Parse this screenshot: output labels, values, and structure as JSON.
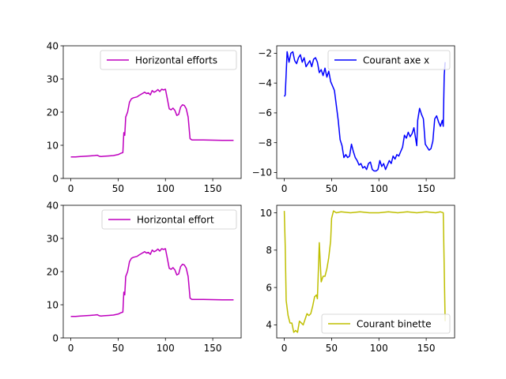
{
  "chart_data": [
    {
      "type": "line",
      "position": "top-left",
      "title": "",
      "xlabel": "",
      "ylabel": "",
      "xlim": [
        -8,
        180
      ],
      "ylim": [
        0,
        40
      ],
      "xticks": [
        0,
        50,
        100,
        150
      ],
      "yticks": [
        0,
        10,
        20,
        30,
        40
      ],
      "grid": false,
      "legend_loc": "upper right",
      "series": [
        {
          "name": "Horizontal efforts",
          "color": "#bf00bf",
          "points": [
            [
              0,
              6.5
            ],
            [
              5,
              6.5
            ],
            [
              10,
              6.6
            ],
            [
              15,
              6.7
            ],
            [
              20,
              6.8
            ],
            [
              25,
              6.9
            ],
            [
              28,
              7.0
            ],
            [
              30,
              6.7
            ],
            [
              32,
              6.6
            ],
            [
              35,
              6.7
            ],
            [
              40,
              6.8
            ],
            [
              45,
              6.9
            ],
            [
              50,
              7.2
            ],
            [
              53,
              7.6
            ],
            [
              55,
              7.8
            ],
            [
              56,
              13.8
            ],
            [
              57,
              13.0
            ],
            [
              58,
              18.5
            ],
            [
              60,
              20.0
            ],
            [
              62,
              23.0
            ],
            [
              64,
              24.0
            ],
            [
              66,
              24.3
            ],
            [
              70,
              24.6
            ],
            [
              72,
              25.0
            ],
            [
              75,
              25.5
            ],
            [
              78,
              26.0
            ],
            [
              80,
              25.6
            ],
            [
              82,
              25.8
            ],
            [
              84,
              25.2
            ],
            [
              86,
              26.5
            ],
            [
              88,
              26.0
            ],
            [
              90,
              26.3
            ],
            [
              92,
              26.8
            ],
            [
              94,
              26.2
            ],
            [
              96,
              26.9
            ],
            [
              98,
              26.7
            ],
            [
              100,
              26.9
            ],
            [
              102,
              24.0
            ],
            [
              104,
              21.0
            ],
            [
              106,
              20.7
            ],
            [
              108,
              21.2
            ],
            [
              110,
              20.5
            ],
            [
              112,
              19.0
            ],
            [
              114,
              19.3
            ],
            [
              116,
              21.5
            ],
            [
              118,
              22.2
            ],
            [
              120,
              22.0
            ],
            [
              122,
              21.0
            ],
            [
              124,
              18.5
            ],
            [
              126,
              12.0
            ],
            [
              128,
              11.6
            ],
            [
              140,
              11.6
            ],
            [
              160,
              11.5
            ],
            [
              172,
              11.5
            ]
          ]
        }
      ]
    },
    {
      "type": "line",
      "position": "top-right",
      "title": "",
      "xlabel": "",
      "ylabel": "",
      "xlim": [
        -8,
        180
      ],
      "ylim": [
        -10.4,
        -1.5
      ],
      "xticks": [
        0,
        50,
        100,
        150
      ],
      "yticks": [
        -10,
        -8,
        -6,
        -4,
        -2
      ],
      "grid": false,
      "legend_loc": "upper right",
      "series": [
        {
          "name": "Courant axe x",
          "color": "#0000ff",
          "points": [
            [
              0,
              -4.9
            ],
            [
              1,
              -4.8
            ],
            [
              3,
              -1.9
            ],
            [
              5,
              -2.6
            ],
            [
              7,
              -2.0
            ],
            [
              9,
              -1.9
            ],
            [
              11,
              -2.5
            ],
            [
              13,
              -2.7
            ],
            [
              15,
              -2.3
            ],
            [
              17,
              -2.1
            ],
            [
              19,
              -2.6
            ],
            [
              21,
              -2.3
            ],
            [
              23,
              -2.9
            ],
            [
              25,
              -2.7
            ],
            [
              27,
              -2.5
            ],
            [
              29,
              -2.9
            ],
            [
              31,
              -2.4
            ],
            [
              33,
              -2.3
            ],
            [
              35,
              -2.6
            ],
            [
              37,
              -3.3
            ],
            [
              39,
              -3.1
            ],
            [
              41,
              -3.5
            ],
            [
              43,
              -3.0
            ],
            [
              45,
              -3.6
            ],
            [
              47,
              -3.2
            ],
            [
              49,
              -3.9
            ],
            [
              51,
              -4.2
            ],
            [
              53,
              -4.5
            ],
            [
              55,
              -5.5
            ],
            [
              57,
              -6.5
            ],
            [
              59,
              -7.8
            ],
            [
              61,
              -8.2
            ],
            [
              63,
              -9.0
            ],
            [
              65,
              -8.8
            ],
            [
              67,
              -9.0
            ],
            [
              69,
              -8.9
            ],
            [
              71,
              -8.1
            ],
            [
              73,
              -8.6
            ],
            [
              75,
              -9.0
            ],
            [
              77,
              -9.2
            ],
            [
              79,
              -9.5
            ],
            [
              81,
              -9.4
            ],
            [
              83,
              -9.7
            ],
            [
              85,
              -9.6
            ],
            [
              87,
              -9.8
            ],
            [
              89,
              -9.4
            ],
            [
              91,
              -9.3
            ],
            [
              93,
              -9.8
            ],
            [
              95,
              -9.9
            ],
            [
              97,
              -9.9
            ],
            [
              99,
              -9.8
            ],
            [
              101,
              -9.2
            ],
            [
              103,
              -9.6
            ],
            [
              105,
              -9.4
            ],
            [
              107,
              -9.8
            ],
            [
              109,
              -9.5
            ],
            [
              111,
              -9.2
            ],
            [
              113,
              -9.4
            ],
            [
              115,
              -8.9
            ],
            [
              117,
              -9.1
            ],
            [
              119,
              -8.8
            ],
            [
              121,
              -8.9
            ],
            [
              123,
              -8.6
            ],
            [
              125,
              -8.3
            ],
            [
              127,
              -7.5
            ],
            [
              129,
              -7.7
            ],
            [
              131,
              -7.3
            ],
            [
              133,
              -7.6
            ],
            [
              135,
              -7.4
            ],
            [
              137,
              -7.0
            ],
            [
              139,
              -7.8
            ],
            [
              140,
              -8.2
            ],
            [
              141,
              -6.5
            ],
            [
              143,
              -5.7
            ],
            [
              145,
              -6.1
            ],
            [
              147,
              -6.4
            ],
            [
              149,
              -8.1
            ],
            [
              151,
              -8.3
            ],
            [
              153,
              -8.5
            ],
            [
              155,
              -8.4
            ],
            [
              157,
              -7.9
            ],
            [
              159,
              -6.4
            ],
            [
              161,
              -6.2
            ],
            [
              163,
              -6.6
            ],
            [
              165,
              -6.9
            ],
            [
              167,
              -6.5
            ],
            [
              168,
              -6.9
            ],
            [
              169,
              -3.5
            ],
            [
              170,
              -2.6
            ]
          ]
        }
      ]
    },
    {
      "type": "line",
      "position": "bottom-left",
      "title": "",
      "xlabel": "",
      "ylabel": "",
      "xlim": [
        -8,
        180
      ],
      "ylim": [
        0,
        40
      ],
      "xticks": [
        0,
        50,
        100,
        150
      ],
      "yticks": [
        0,
        10,
        20,
        30,
        40
      ],
      "grid": false,
      "legend_loc": "upper right",
      "series": [
        {
          "name": "Horizontal effort",
          "color": "#bf00bf",
          "points": [
            [
              0,
              6.5
            ],
            [
              5,
              6.5
            ],
            [
              10,
              6.6
            ],
            [
              15,
              6.7
            ],
            [
              20,
              6.8
            ],
            [
              25,
              6.9
            ],
            [
              28,
              7.0
            ],
            [
              30,
              6.7
            ],
            [
              32,
              6.6
            ],
            [
              35,
              6.7
            ],
            [
              40,
              6.8
            ],
            [
              45,
              6.9
            ],
            [
              50,
              7.2
            ],
            [
              53,
              7.6
            ],
            [
              55,
              7.8
            ],
            [
              56,
              13.8
            ],
            [
              57,
              13.0
            ],
            [
              58,
              18.5
            ],
            [
              60,
              20.0
            ],
            [
              62,
              23.0
            ],
            [
              64,
              24.0
            ],
            [
              66,
              24.3
            ],
            [
              70,
              24.6
            ],
            [
              72,
              25.0
            ],
            [
              75,
              25.5
            ],
            [
              78,
              26.0
            ],
            [
              80,
              25.6
            ],
            [
              82,
              25.8
            ],
            [
              84,
              25.2
            ],
            [
              86,
              26.5
            ],
            [
              88,
              26.0
            ],
            [
              90,
              26.3
            ],
            [
              92,
              26.8
            ],
            [
              94,
              26.2
            ],
            [
              96,
              26.9
            ],
            [
              98,
              26.7
            ],
            [
              100,
              26.9
            ],
            [
              102,
              24.0
            ],
            [
              104,
              21.0
            ],
            [
              106,
              20.7
            ],
            [
              108,
              21.2
            ],
            [
              110,
              20.5
            ],
            [
              112,
              19.0
            ],
            [
              114,
              19.3
            ],
            [
              116,
              21.5
            ],
            [
              118,
              22.2
            ],
            [
              120,
              22.0
            ],
            [
              122,
              21.0
            ],
            [
              124,
              18.5
            ],
            [
              126,
              12.0
            ],
            [
              128,
              11.6
            ],
            [
              140,
              11.6
            ],
            [
              160,
              11.5
            ],
            [
              172,
              11.5
            ]
          ]
        }
      ]
    },
    {
      "type": "line",
      "position": "bottom-right",
      "title": "",
      "xlabel": "",
      "ylabel": "",
      "xlim": [
        -8,
        180
      ],
      "ylim": [
        3.3,
        10.4
      ],
      "xticks": [
        0,
        50,
        100,
        150
      ],
      "yticks": [
        4,
        6,
        8,
        10
      ],
      "grid": false,
      "legend_loc": "lower right",
      "series": [
        {
          "name": "Courant binette",
          "color": "#bfbf00",
          "points": [
            [
              0,
              10.1
            ],
            [
              1,
              8.2
            ],
            [
              2,
              5.3
            ],
            [
              4,
              4.5
            ],
            [
              6,
              4.1
            ],
            [
              8,
              4.1
            ],
            [
              10,
              3.6
            ],
            [
              12,
              3.7
            ],
            [
              14,
              3.6
            ],
            [
              16,
              4.2
            ],
            [
              18,
              4.1
            ],
            [
              20,
              4.0
            ],
            [
              22,
              4.3
            ],
            [
              24,
              4.6
            ],
            [
              26,
              4.5
            ],
            [
              28,
              4.6
            ],
            [
              30,
              5.0
            ],
            [
              32,
              5.5
            ],
            [
              34,
              5.6
            ],
            [
              35,
              5.4
            ],
            [
              37,
              8.4
            ],
            [
              39,
              6.3
            ],
            [
              41,
              6.6
            ],
            [
              43,
              6.6
            ],
            [
              45,
              7.0
            ],
            [
              47,
              7.6
            ],
            [
              49,
              8.5
            ],
            [
              50,
              9.7
            ],
            [
              52,
              10.1
            ],
            [
              55,
              10.0
            ],
            [
              60,
              10.05
            ],
            [
              70,
              10.0
            ],
            [
              80,
              10.05
            ],
            [
              90,
              10.0
            ],
            [
              100,
              10.0
            ],
            [
              110,
              10.05
            ],
            [
              120,
              10.0
            ],
            [
              130,
              10.05
            ],
            [
              140,
              10.0
            ],
            [
              150,
              10.05
            ],
            [
              160,
              10.0
            ],
            [
              165,
              10.05
            ],
            [
              168,
              10.0
            ],
            [
              170,
              4.2
            ]
          ]
        }
      ]
    }
  ]
}
